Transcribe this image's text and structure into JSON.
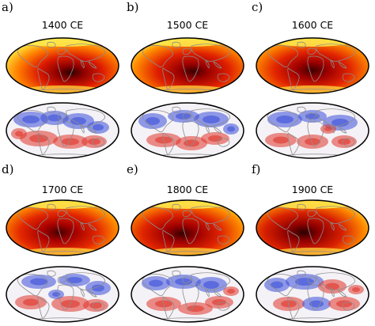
{
  "panels": [
    {
      "letter": "a)",
      "title": "1400 CE"
    },
    {
      "letter": "b)",
      "title": "1500 CE"
    },
    {
      "letter": "c)",
      "title": "1600 CE"
    },
    {
      "letter": "d)",
      "title": "1700 CE"
    },
    {
      "letter": "e)",
      "title": "1800 CE"
    },
    {
      "letter": "f)",
      "title": "1900 CE"
    }
  ],
  "map_projection": "Mollweide",
  "field_map_colormap": "yellow-orange-red-black (hot)",
  "anomaly_map_colormap": "blue-white-red (diverging)",
  "coastline_color": "#8c8c8c"
}
